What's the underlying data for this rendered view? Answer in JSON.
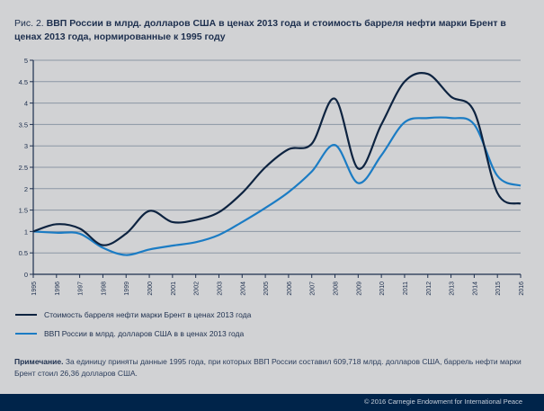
{
  "title": {
    "prefix": "Рис. 2.",
    "main": "ВВП России в млрд. долларов США в ценах 2013 года и стоимость барреля нефти марки Брент в ценах 2013 года, нормированные к 1995 году"
  },
  "legend": [
    {
      "label": "Стоимость барреля нефти марки Брент в ценах 2013 года",
      "color": "#0d2340"
    },
    {
      "label": "ВВП России в млрд. долларов США в в ценах 2013 года",
      "color": "#1b7cc4"
    }
  ],
  "note": {
    "label": "Примечание.",
    "text": "За единицу приняты данные 1995 года, при которых ВВП России составил 609,718 млрд. долларов США, баррель нефти марки Брент стоил 26,36 долларов США."
  },
  "footer": {
    "copyright": "© 2016 Carnegie Endowment for International Peace"
  },
  "chart_data": {
    "type": "line",
    "title": "ВВП России в млрд. долларов США в ценах 2013 года и стоимость барреля нефти марки Брент в ценах 2013 года, нормированные к 1995 году",
    "xlabel": "",
    "ylabel": "",
    "x": [
      "1995",
      "1996",
      "1997",
      "1998",
      "1999",
      "2000",
      "2001",
      "2002",
      "2003",
      "2004",
      "2005",
      "2006",
      "2007",
      "2008",
      "2009",
      "2010",
      "2011",
      "2012",
      "2013",
      "2014",
      "2015",
      "2016"
    ],
    "ylim": [
      0,
      5
    ],
    "yticks": [
      "0",
      "0.5",
      "1",
      "1.5",
      "2",
      "2.5",
      "3",
      "3.5",
      "4",
      "4.5",
      "5"
    ],
    "grid": true,
    "legend_position": "bottom-left",
    "series": [
      {
        "name": "Стоимость барреля нефти марки Брент в ценах 2013 года",
        "color": "#0d2340",
        "values": [
          1.0,
          1.17,
          1.07,
          0.68,
          0.95,
          1.48,
          1.22,
          1.27,
          1.45,
          1.9,
          2.5,
          2.92,
          3.05,
          4.1,
          2.47,
          3.5,
          4.5,
          4.68,
          4.15,
          3.8,
          1.9,
          1.65
        ]
      },
      {
        "name": "ВВП России в млрд. долларов США в в ценах 2013 года",
        "color": "#1b7cc4",
        "values": [
          1.0,
          0.97,
          0.95,
          0.62,
          0.45,
          0.58,
          0.67,
          0.75,
          0.92,
          1.22,
          1.55,
          1.92,
          2.4,
          3.02,
          2.13,
          2.78,
          3.55,
          3.65,
          3.65,
          3.5,
          2.3,
          2.07
        ]
      }
    ]
  }
}
